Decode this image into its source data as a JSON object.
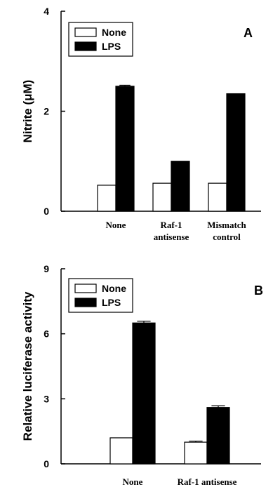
{
  "chart_data": [
    {
      "type": "bar",
      "panel_label": "A",
      "ylabel": "Nitrite (μM)",
      "ylim": [
        0,
        4
      ],
      "yticks": [
        "0",
        "2",
        "4"
      ],
      "categories": [
        [
          "None"
        ],
        [
          "Raf-1",
          "antisense"
        ],
        [
          "Mismatch",
          "control"
        ]
      ],
      "series": [
        {
          "name": "None",
          "values": [
            0.52,
            0.56,
            0.56
          ],
          "errors": [
            0,
            0,
            0
          ],
          "color": "#ffffff"
        },
        {
          "name": "LPS",
          "values": [
            2.5,
            1.0,
            2.35
          ],
          "errors": [
            0.02,
            0,
            0
          ],
          "color": "#000000"
        }
      ],
      "legend_position": "top-left"
    },
    {
      "type": "bar",
      "panel_label": "B",
      "ylabel": "Relative luciferase activity",
      "ylim": [
        0,
        9
      ],
      "yticks": [
        "0",
        "3",
        "6",
        "9"
      ],
      "categories": [
        [
          "None"
        ],
        [
          "Raf-1 antisense"
        ]
      ],
      "series": [
        {
          "name": "None",
          "values": [
            1.2,
            1.0
          ],
          "errors": [
            0,
            0.05
          ],
          "color": "#ffffff"
        },
        {
          "name": "LPS",
          "values": [
            6.5,
            2.6
          ],
          "errors": [
            0.08,
            0.08
          ],
          "color": "#000000"
        }
      ],
      "legend_position": "top-left"
    }
  ]
}
